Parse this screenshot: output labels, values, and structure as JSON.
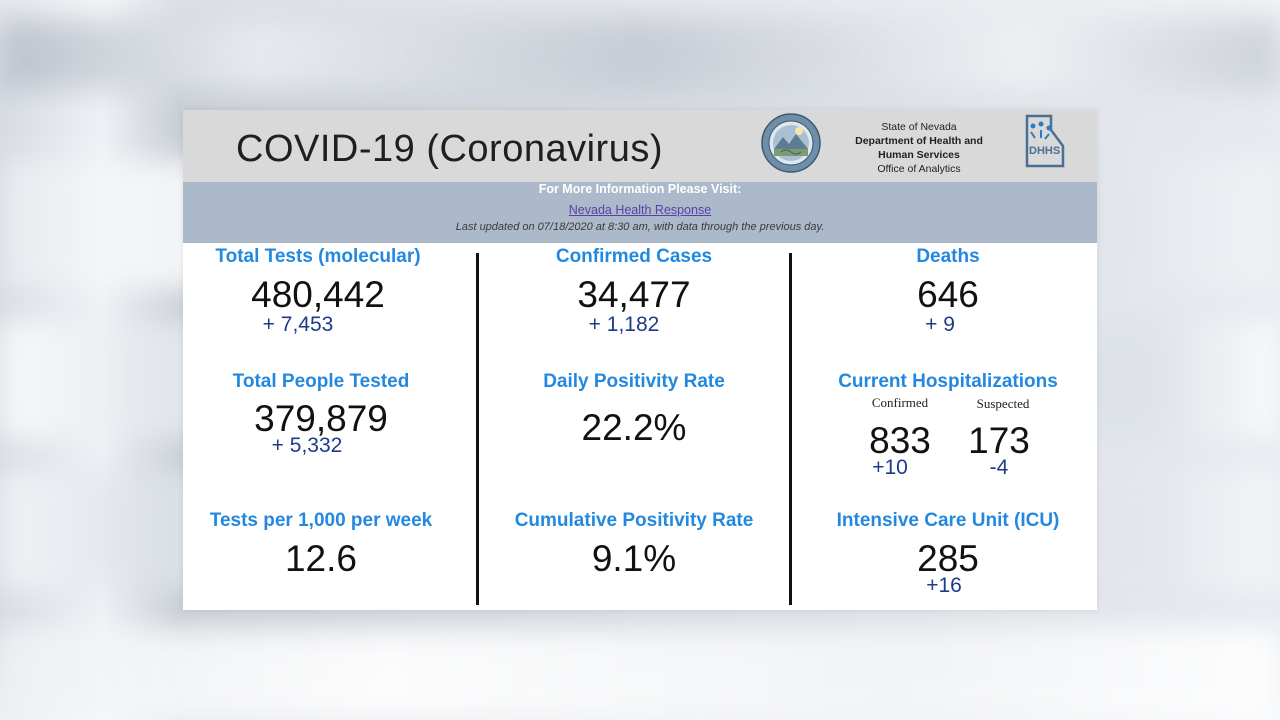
{
  "header": {
    "title": "COVID-19 (Coronavirus)",
    "org_line1": "State of Nevada",
    "org_line2": "Department of Health and",
    "org_line3": "Human Services",
    "org_line4": "Office of Analytics",
    "seal_icon": "nevada-state-seal-icon",
    "dhhs_icon": "dhhs-logo-icon"
  },
  "info": {
    "title": "For More Information Please Visit:",
    "link": "Nevada Health Response",
    "updated": "Last updated on 07/18/2020 at 8:30 am, with data through the previous day."
  },
  "stats": {
    "total_tests": {
      "label": "Total Tests (molecular)",
      "value": "480,442",
      "delta": "+ 7,453"
    },
    "confirmed_cases": {
      "label": "Confirmed Cases",
      "value": "34,477",
      "delta": "+ 1,182"
    },
    "deaths": {
      "label": "Deaths",
      "value": "646",
      "delta": "+ 9"
    },
    "people_tested": {
      "label": "Total People Tested",
      "value": "379,879",
      "delta": "+ 5,332"
    },
    "daily_positivity": {
      "label": "Daily Positivity Rate",
      "value": "22.2%"
    },
    "hospitalizations": {
      "label": "Current Hospitalizations",
      "confirmed_label": "Confirmed",
      "suspected_label": "Suspected",
      "confirmed_value": "833",
      "confirmed_delta": "+10",
      "suspected_value": "173",
      "suspected_delta": "-4"
    },
    "tests_per_1000": {
      "label": "Tests per 1,000 per week",
      "value": "12.6"
    },
    "cumulative_positivity": {
      "label": "Cumulative Positivity Rate",
      "value": "9.1%"
    },
    "icu": {
      "label": "Intensive Care Unit (ICU)",
      "value": "285",
      "delta": "+16"
    }
  },
  "colors": {
    "label_blue": "#2389e0",
    "delta_navy": "#1e3a8a",
    "header_gray": "#d9d9d9",
    "info_bar": "#acb9ca"
  }
}
